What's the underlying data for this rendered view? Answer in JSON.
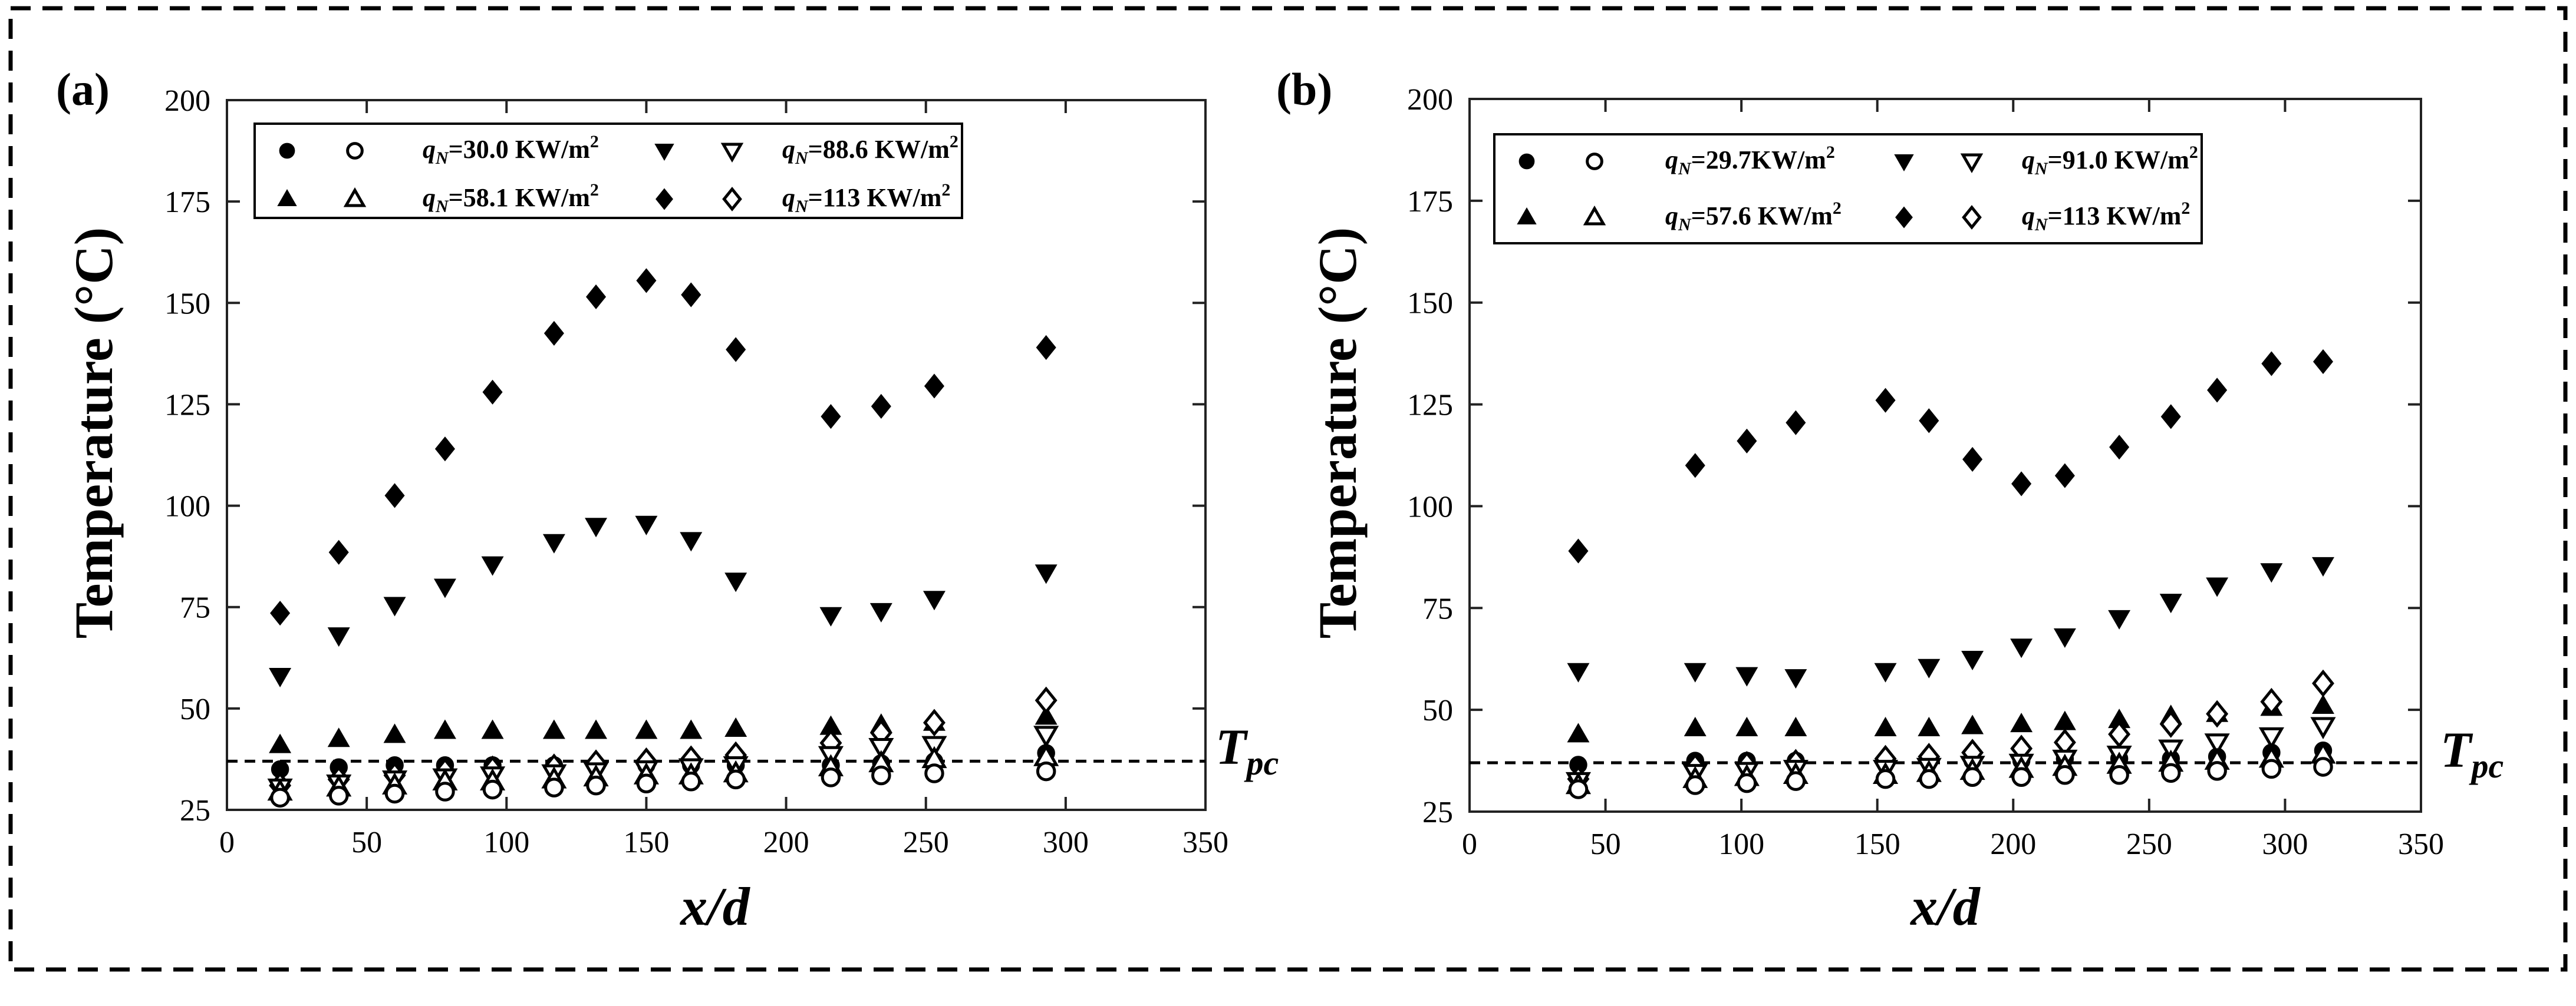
{
  "figure": {
    "tpc_label": "T",
    "tpc_sub": "pc"
  },
  "chart_data": [
    {
      "type": "scatter",
      "panel_label": "(a)",
      "xlabel": "x/d",
      "ylabel": "Temperature (°C)",
      "xlim": [
        0,
        350
      ],
      "ylim": [
        25,
        200
      ],
      "xticks": [
        0,
        50,
        100,
        150,
        200,
        250,
        300,
        350
      ],
      "yticks": [
        25,
        50,
        75,
        100,
        125,
        150,
        175,
        200
      ],
      "tpc_value": 37,
      "legend": [
        {
          "q": "30.0",
          "unit": " KW/m",
          "filled": "circle",
          "open": "circle"
        },
        {
          "q": "88.6",
          "unit": " KW/m",
          "filled": "tri-down",
          "open": "tri-down"
        },
        {
          "q": "58.1",
          "unit": " KW/m",
          "filled": "tri-up",
          "open": "tri-up"
        },
        {
          "q": "113",
          "unit": " KW/m",
          "filled": "diamond",
          "open": "diamond"
        }
      ],
      "series": [
        {
          "name": "qN=113 KW/m2 filled",
          "marker": "diamond",
          "filled": true,
          "x": [
            19,
            40,
            60,
            78,
            95,
            117,
            132,
            150,
            166,
            182,
            216,
            234,
            253,
            293
          ],
          "y": [
            73.5,
            88.5,
            102.5,
            114,
            128,
            142.5,
            151.5,
            155.5,
            152,
            138.5,
            122,
            124.5,
            129.5,
            139
          ]
        },
        {
          "name": "qN=88.6 KW/m2 filled",
          "marker": "tri-down",
          "filled": true,
          "x": [
            19,
            40,
            60,
            78,
            95,
            117,
            132,
            150,
            166,
            182,
            216,
            234,
            253,
            293
          ],
          "y": [
            58,
            68,
            75.5,
            80,
            85.5,
            91,
            95,
            95.5,
            91.5,
            81.5,
            73,
            74,
            77,
            83.5
          ]
        },
        {
          "name": "qN=58.1 KW/m2 filled",
          "marker": "tri-up",
          "filled": true,
          "x": [
            19,
            40,
            60,
            78,
            95,
            117,
            132,
            150,
            166,
            182,
            216,
            234,
            253,
            293
          ],
          "y": [
            41,
            42.5,
            43.5,
            44.5,
            44.5,
            44.5,
            44.5,
            44.5,
            44.5,
            45,
            45.5,
            46,
            46.5,
            48
          ]
        },
        {
          "name": "qN=30.0 KW/m2 filled",
          "marker": "circle",
          "filled": true,
          "x": [
            19,
            40,
            60,
            78,
            95,
            117,
            132,
            150,
            166,
            182,
            216,
            234,
            253,
            293
          ],
          "y": [
            35,
            35.5,
            36,
            36,
            36,
            36,
            36,
            36,
            36,
            36,
            36,
            36.5,
            37,
            39
          ]
        },
        {
          "name": "qN=113 KW/m2 open",
          "marker": "diamond",
          "filled": false,
          "x": [
            19,
            40,
            60,
            78,
            95,
            117,
            132,
            150,
            166,
            182,
            216,
            234,
            253,
            293
          ],
          "y": [
            31,
            32.5,
            33.5,
            34.5,
            35,
            35.5,
            36.5,
            37,
            37.5,
            38.5,
            41.5,
            44,
            46.5,
            52
          ]
        },
        {
          "name": "qN=88.6 KW/m2 open",
          "marker": "tri-down",
          "filled": false,
          "x": [
            19,
            40,
            60,
            78,
            95,
            117,
            132,
            150,
            166,
            182,
            216,
            234,
            253,
            293
          ],
          "y": [
            30.5,
            31.5,
            32.5,
            33,
            33.5,
            34,
            34.5,
            35,
            35.5,
            36,
            38.5,
            40.5,
            41,
            43.5
          ]
        },
        {
          "name": "qN=58.1 KW/m2 open",
          "marker": "tri-up",
          "filled": false,
          "x": [
            19,
            40,
            60,
            78,
            95,
            117,
            132,
            150,
            166,
            182,
            216,
            234,
            253,
            293
          ],
          "y": [
            29.5,
            30.5,
            31,
            32,
            32,
            32.5,
            33,
            33.5,
            33.5,
            34,
            35.5,
            36.5,
            37.5,
            38
          ]
        },
        {
          "name": "qN=30.0 KW/m2 open",
          "marker": "circle",
          "filled": false,
          "x": [
            19,
            40,
            60,
            78,
            95,
            117,
            132,
            150,
            166,
            182,
            216,
            234,
            253,
            293
          ],
          "y": [
            28,
            28.5,
            29,
            29.5,
            30,
            30.5,
            31,
            31.5,
            32,
            32.5,
            33,
            33.5,
            34,
            34.5
          ]
        }
      ]
    },
    {
      "type": "scatter",
      "panel_label": "(b)",
      "xlabel": "x/d",
      "ylabel": "Temperature (°C)",
      "xlim": [
        0,
        350
      ],
      "ylim": [
        25,
        200
      ],
      "xticks": [
        0,
        50,
        100,
        150,
        200,
        250,
        300,
        350
      ],
      "yticks": [
        25,
        50,
        75,
        100,
        125,
        150,
        175,
        200
      ],
      "tpc_value": 37,
      "legend": [
        {
          "q": "29.7",
          "unit": "KW/m",
          "filled": "circle",
          "open": "circle"
        },
        {
          "q": "91.0",
          "unit": " KW/m",
          "filled": "tri-down",
          "open": "tri-down"
        },
        {
          "q": "57.6",
          "unit": " KW/m",
          "filled": "tri-up",
          "open": "tri-up"
        },
        {
          "q": "113",
          "unit": " KW/m",
          "filled": "diamond",
          "open": "diamond"
        }
      ],
      "series": [
        {
          "name": "qN=113 KW/m2 filled",
          "marker": "diamond",
          "filled": true,
          "x": [
            40,
            83,
            102,
            120,
            153,
            169,
            185,
            203,
            219,
            239,
            258,
            275,
            295,
            314
          ],
          "y": [
            89,
            110,
            116,
            120.5,
            126,
            121,
            111.5,
            105.5,
            107.5,
            114.5,
            122,
            128.5,
            135,
            135.5
          ]
        },
        {
          "name": "qN=91.0 KW/m2 filled",
          "marker": "tri-down",
          "filled": true,
          "x": [
            40,
            83,
            102,
            120,
            153,
            169,
            185,
            203,
            219,
            239,
            258,
            275,
            295,
            314
          ],
          "y": [
            59.5,
            59.5,
            58.5,
            58,
            59.5,
            60.5,
            62.5,
            65.5,
            68,
            72.5,
            76.5,
            80.5,
            84,
            85.5
          ]
        },
        {
          "name": "qN=57.6 KW/m2 filled",
          "marker": "tri-up",
          "filled": true,
          "x": [
            40,
            83,
            102,
            120,
            153,
            169,
            185,
            203,
            219,
            239,
            258,
            275,
            295,
            314
          ],
          "y": [
            44,
            45.5,
            45.5,
            45.5,
            45.5,
            45.5,
            46,
            46.5,
            47,
            47.5,
            48.5,
            49,
            50.5,
            51
          ]
        },
        {
          "name": "qN=29.7 KW/m2 filled",
          "marker": "circle",
          "filled": true,
          "x": [
            40,
            83,
            102,
            120,
            153,
            169,
            185,
            203,
            219,
            239,
            258,
            275,
            295,
            314
          ],
          "y": [
            36.5,
            37.5,
            37.5,
            37.5,
            37.5,
            37.5,
            37.5,
            37.5,
            38,
            38,
            38,
            38.5,
            39.5,
            40
          ]
        },
        {
          "name": "qN=113 KW/m2 open",
          "marker": "diamond",
          "filled": false,
          "x": [
            40,
            83,
            102,
            120,
            153,
            169,
            185,
            203,
            219,
            239,
            258,
            275,
            295,
            314
          ],
          "y": [
            33,
            36,
            36.5,
            37,
            38,
            38.5,
            39.5,
            40.5,
            42,
            44,
            46.5,
            49,
            52,
            56.5
          ]
        },
        {
          "name": "qN=91.0 KW/m2 open",
          "marker": "tri-down",
          "filled": false,
          "x": [
            40,
            83,
            102,
            120,
            153,
            169,
            185,
            203,
            219,
            239,
            258,
            275,
            295,
            314
          ],
          "y": [
            32.5,
            34.5,
            35,
            35.5,
            35.5,
            36,
            36.5,
            37,
            38,
            39,
            40.5,
            42,
            43.5,
            46
          ]
        },
        {
          "name": "qN=57.6 KW/m2 open",
          "marker": "tri-up",
          "filled": false,
          "x": [
            40,
            83,
            102,
            120,
            153,
            169,
            185,
            203,
            219,
            239,
            258,
            275,
            295,
            314
          ],
          "y": [
            31.5,
            33,
            33.5,
            34,
            34,
            34.5,
            35,
            35.5,
            36,
            36.5,
            37,
            37.5,
            38,
            39
          ]
        },
        {
          "name": "qN=29.7 KW/m2 open",
          "marker": "circle",
          "filled": false,
          "x": [
            40,
            83,
            102,
            120,
            153,
            169,
            185,
            203,
            219,
            239,
            258,
            275,
            295,
            314
          ],
          "y": [
            30.5,
            31.5,
            32,
            32.5,
            33,
            33,
            33.5,
            33.5,
            34,
            34,
            34.5,
            35,
            35.5,
            36
          ]
        }
      ]
    }
  ]
}
